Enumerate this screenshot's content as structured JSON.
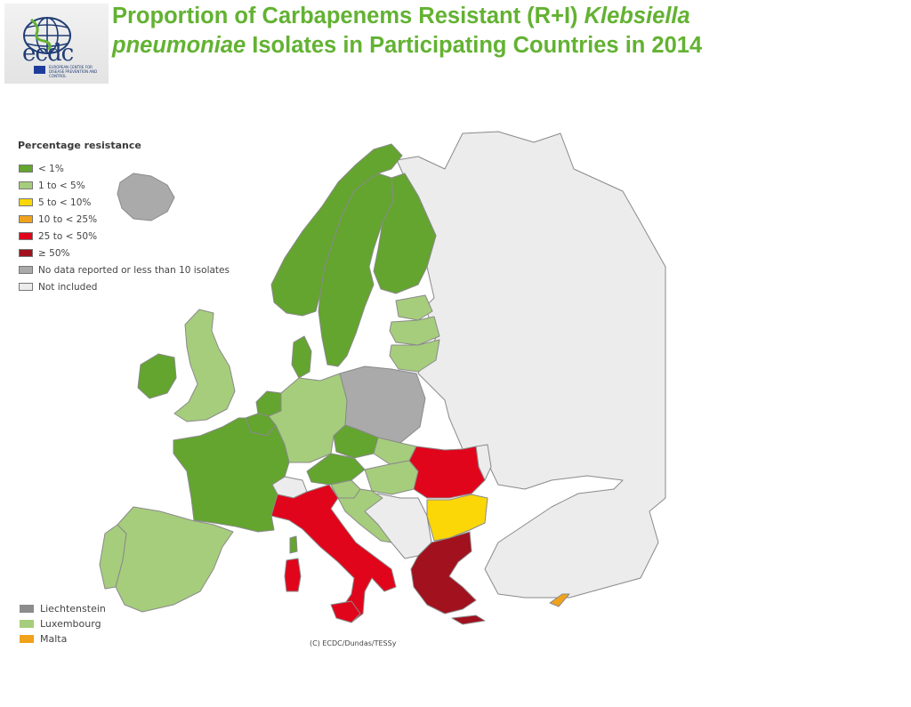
{
  "logo": {
    "word": "ecdc",
    "small_text": "European Centre for Disease Prevention and Control"
  },
  "title": {
    "part1": "Proportion of Carbapenems Resistant (R+I) ",
    "italic1": "Klebsiella",
    "italic2": "pneumoniae",
    "part2": " Isolates in Participating Countries in 2014"
  },
  "legend": {
    "title": "Percentage resistance",
    "items": [
      {
        "label": "< 1%",
        "color": "#63a52f"
      },
      {
        "label": "1 to < 5%",
        "color": "#a6cd7c"
      },
      {
        "label": "5 to < 10%",
        "color": "#fbd707"
      },
      {
        "label": "10 to < 25%",
        "color": "#f0a21c"
      },
      {
        "label": "25 to < 50%",
        "color": "#e0051b"
      },
      {
        "label": "≥ 50%",
        "color": "#a1111e"
      },
      {
        "label": "No data reported or less than 10 isolates",
        "color": "#aaaaaa"
      },
      {
        "label": "Not included",
        "color": "#ececec"
      }
    ]
  },
  "small_countries": [
    {
      "label": "Liechtenstein",
      "color": "#8c8c8c"
    },
    {
      "label": "Luxembourg",
      "color": "#a6cd7c"
    },
    {
      "label": "Malta",
      "color": "#f0a21c"
    }
  ],
  "credit": "(C) ECDC/Dundas/TESSy",
  "map_colors": {
    "lt1": "#63a52f",
    "p1to5": "#a6cd7c",
    "p5to10": "#fbd707",
    "p10to25": "#f0a21c",
    "p25to50": "#e0051b",
    "ge50": "#a1111e",
    "nodata": "#aaaaaa",
    "notincluded": "#ececec"
  },
  "country_classes": {
    "Iceland": "nodata",
    "Norway": "lt1",
    "Sweden": "lt1",
    "Finland": "lt1",
    "Denmark": "lt1",
    "Ireland": "lt1",
    "United Kingdom": "p1to5",
    "Estonia": "p1to5",
    "Latvia": "p1to5",
    "Lithuania": "p1to5",
    "Netherlands": "lt1",
    "Belgium": "lt1",
    "France": "lt1",
    "Germany": "p1to5",
    "Poland": "nodata",
    "Czech Republic": "lt1",
    "Slovakia": "p1to5",
    "Austria": "lt1",
    "Hungary": "p1to5",
    "Slovenia": "p1to5",
    "Croatia": "p1to5",
    "Romania": "p25to50",
    "Bulgaria": "p5to10",
    "Greece": "ge50",
    "Italy": "p25to50",
    "Portugal": "p1to5",
    "Spain": "p1to5",
    "Cyprus": "p10to25"
  }
}
